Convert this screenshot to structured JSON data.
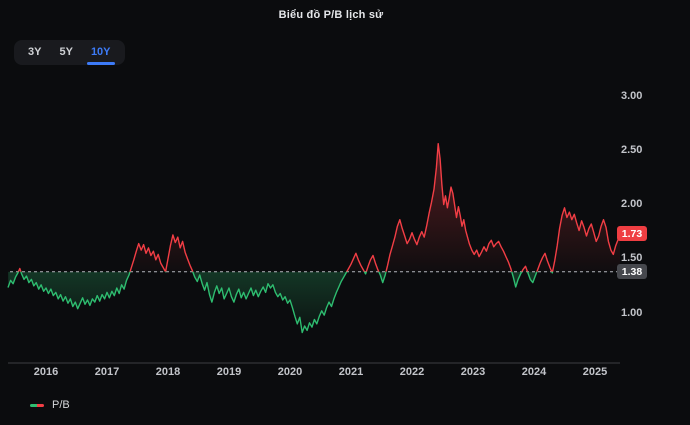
{
  "header": {
    "title": "Biểu đồ P/B lịch sử"
  },
  "range_switcher": {
    "options": [
      {
        "label": "3Y",
        "active": false
      },
      {
        "label": "5Y",
        "active": false
      },
      {
        "label": "10Y",
        "active": true
      }
    ],
    "active_color": "#3d7bf7"
  },
  "legend": {
    "label": "P/B"
  },
  "chart_data": {
    "type": "line",
    "subtype": "baseline",
    "title": "Biểu đồ P/B lịch sử",
    "series_name": "P/B",
    "xlabel": "",
    "ylabel": "",
    "legend_position": "bottom-left",
    "grid": false,
    "baseline_value": 1.38,
    "baseline_label": "1.38",
    "current_value": 1.73,
    "current_value_label": "1.73",
    "y_ticks": [
      "3.00",
      "2.50",
      "2.00",
      "1.50",
      "1.00"
    ],
    "x_ticks": [
      "2016",
      "2017",
      "2018",
      "2019",
      "2020",
      "2021",
      "2022",
      "2023",
      "2024",
      "2025"
    ],
    "x_range": [
      2015.38,
      2025.41
    ],
    "y_range": [
      0.55,
      3.05
    ],
    "colors": {
      "up": "#f23e45",
      "down": "#2ebd70",
      "baseline": "#b3b6bc",
      "axis": "#3c3e43",
      "current_badge_bg": "#ef3e42",
      "baseline_badge_bg": "#46484d"
    },
    "points": [
      [
        2015.38,
        1.24
      ],
      [
        2015.42,
        1.3
      ],
      [
        2015.46,
        1.27
      ],
      [
        2015.5,
        1.33
      ],
      [
        2015.54,
        1.37
      ],
      [
        2015.57,
        1.41
      ],
      [
        2015.6,
        1.36
      ],
      [
        2015.64,
        1.31
      ],
      [
        2015.68,
        1.34
      ],
      [
        2015.72,
        1.28
      ],
      [
        2015.76,
        1.31
      ],
      [
        2015.8,
        1.25
      ],
      [
        2015.84,
        1.28
      ],
      [
        2015.88,
        1.22
      ],
      [
        2015.92,
        1.26
      ],
      [
        2015.96,
        1.2
      ],
      [
        2016.0,
        1.23
      ],
      [
        2016.04,
        1.18
      ],
      [
        2016.08,
        1.22
      ],
      [
        2016.12,
        1.16
      ],
      [
        2016.16,
        1.19
      ],
      [
        2016.2,
        1.13
      ],
      [
        2016.24,
        1.17
      ],
      [
        2016.28,
        1.11
      ],
      [
        2016.32,
        1.15
      ],
      [
        2016.36,
        1.09
      ],
      [
        2016.4,
        1.13
      ],
      [
        2016.44,
        1.06
      ],
      [
        2016.48,
        1.1
      ],
      [
        2016.52,
        1.04
      ],
      [
        2016.56,
        1.09
      ],
      [
        2016.6,
        1.14
      ],
      [
        2016.64,
        1.08
      ],
      [
        2016.68,
        1.12
      ],
      [
        2016.72,
        1.07
      ],
      [
        2016.76,
        1.13
      ],
      [
        2016.8,
        1.1
      ],
      [
        2016.84,
        1.16
      ],
      [
        2016.88,
        1.11
      ],
      [
        2016.92,
        1.17
      ],
      [
        2016.96,
        1.13
      ],
      [
        2017.0,
        1.19
      ],
      [
        2017.04,
        1.14
      ],
      [
        2017.08,
        1.2
      ],
      [
        2017.12,
        1.16
      ],
      [
        2017.16,
        1.23
      ],
      [
        2017.2,
        1.18
      ],
      [
        2017.24,
        1.26
      ],
      [
        2017.28,
        1.22
      ],
      [
        2017.32,
        1.3
      ],
      [
        2017.36,
        1.35
      ],
      [
        2017.4,
        1.42
      ],
      [
        2017.44,
        1.49
      ],
      [
        2017.48,
        1.57
      ],
      [
        2017.52,
        1.64
      ],
      [
        2017.56,
        1.58
      ],
      [
        2017.6,
        1.63
      ],
      [
        2017.64,
        1.55
      ],
      [
        2017.68,
        1.6
      ],
      [
        2017.72,
        1.53
      ],
      [
        2017.76,
        1.57
      ],
      [
        2017.8,
        1.49
      ],
      [
        2017.84,
        1.54
      ],
      [
        2017.88,
        1.46
      ],
      [
        2017.92,
        1.42
      ],
      [
        2017.96,
        1.38
      ],
      [
        2018.0,
        1.5
      ],
      [
        2018.04,
        1.62
      ],
      [
        2018.08,
        1.72
      ],
      [
        2018.12,
        1.65
      ],
      [
        2018.16,
        1.7
      ],
      [
        2018.2,
        1.6
      ],
      [
        2018.24,
        1.66
      ],
      [
        2018.28,
        1.56
      ],
      [
        2018.32,
        1.5
      ],
      [
        2018.36,
        1.44
      ],
      [
        2018.4,
        1.39
      ],
      [
        2018.44,
        1.33
      ],
      [
        2018.48,
        1.29
      ],
      [
        2018.52,
        1.35
      ],
      [
        2018.56,
        1.27
      ],
      [
        2018.6,
        1.21
      ],
      [
        2018.64,
        1.28
      ],
      [
        2018.68,
        1.17
      ],
      [
        2018.72,
        1.1
      ],
      [
        2018.76,
        1.19
      ],
      [
        2018.8,
        1.25
      ],
      [
        2018.84,
        1.18
      ],
      [
        2018.88,
        1.23
      ],
      [
        2018.92,
        1.13
      ],
      [
        2018.96,
        1.18
      ],
      [
        2019.0,
        1.23
      ],
      [
        2019.04,
        1.15
      ],
      [
        2019.08,
        1.1
      ],
      [
        2019.12,
        1.17
      ],
      [
        2019.16,
        1.22
      ],
      [
        2019.2,
        1.14
      ],
      [
        2019.24,
        1.19
      ],
      [
        2019.28,
        1.13
      ],
      [
        2019.32,
        1.18
      ],
      [
        2019.36,
        1.23
      ],
      [
        2019.4,
        1.16
      ],
      [
        2019.44,
        1.21
      ],
      [
        2019.48,
        1.15
      ],
      [
        2019.52,
        1.2
      ],
      [
        2019.56,
        1.24
      ],
      [
        2019.6,
        1.19
      ],
      [
        2019.64,
        1.27
      ],
      [
        2019.68,
        1.23
      ],
      [
        2019.72,
        1.26
      ],
      [
        2019.76,
        1.19
      ],
      [
        2019.8,
        1.15
      ],
      [
        2019.84,
        1.18
      ],
      [
        2019.88,
        1.12
      ],
      [
        2019.92,
        1.15
      ],
      [
        2019.96,
        1.09
      ],
      [
        2020.0,
        1.12
      ],
      [
        2020.04,
        1.05
      ],
      [
        2020.08,
        0.97
      ],
      [
        2020.12,
        0.9
      ],
      [
        2020.16,
        0.96
      ],
      [
        2020.2,
        0.82
      ],
      [
        2020.24,
        0.88
      ],
      [
        2020.28,
        0.84
      ],
      [
        2020.32,
        0.91
      ],
      [
        2020.36,
        0.87
      ],
      [
        2020.4,
        0.94
      ],
      [
        2020.44,
        0.9
      ],
      [
        2020.48,
        0.97
      ],
      [
        2020.52,
        1.02
      ],
      [
        2020.56,
        0.98
      ],
      [
        2020.6,
        1.05
      ],
      [
        2020.64,
        1.1
      ],
      [
        2020.68,
        1.06
      ],
      [
        2020.72,
        1.13
      ],
      [
        2020.76,
        1.19
      ],
      [
        2020.8,
        1.24
      ],
      [
        2020.84,
        1.29
      ],
      [
        2020.88,
        1.33
      ],
      [
        2020.92,
        1.37
      ],
      [
        2020.96,
        1.41
      ],
      [
        2021.0,
        1.45
      ],
      [
        2021.04,
        1.5
      ],
      [
        2021.08,
        1.55
      ],
      [
        2021.12,
        1.49
      ],
      [
        2021.16,
        1.44
      ],
      [
        2021.2,
        1.4
      ],
      [
        2021.24,
        1.36
      ],
      [
        2021.28,
        1.43
      ],
      [
        2021.32,
        1.49
      ],
      [
        2021.36,
        1.53
      ],
      [
        2021.4,
        1.46
      ],
      [
        2021.44,
        1.4
      ],
      [
        2021.48,
        1.35
      ],
      [
        2021.52,
        1.28
      ],
      [
        2021.56,
        1.35
      ],
      [
        2021.6,
        1.44
      ],
      [
        2021.64,
        1.54
      ],
      [
        2021.68,
        1.62
      ],
      [
        2021.72,
        1.7
      ],
      [
        2021.76,
        1.8
      ],
      [
        2021.8,
        1.86
      ],
      [
        2021.84,
        1.78
      ],
      [
        2021.88,
        1.71
      ],
      [
        2021.92,
        1.64
      ],
      [
        2021.96,
        1.68
      ],
      [
        2022.0,
        1.74
      ],
      [
        2022.04,
        1.68
      ],
      [
        2022.08,
        1.63
      ],
      [
        2022.12,
        1.7
      ],
      [
        2022.16,
        1.75
      ],
      [
        2022.2,
        1.7
      ],
      [
        2022.24,
        1.8
      ],
      [
        2022.28,
        1.92
      ],
      [
        2022.32,
        2.02
      ],
      [
        2022.36,
        2.14
      ],
      [
        2022.4,
        2.34
      ],
      [
        2022.43,
        2.56
      ],
      [
        2022.46,
        2.42
      ],
      [
        2022.49,
        2.18
      ],
      [
        2022.52,
        2.0
      ],
      [
        2022.55,
        2.08
      ],
      [
        2022.58,
        1.97
      ],
      [
        2022.61,
        2.06
      ],
      [
        2022.64,
        2.16
      ],
      [
        2022.67,
        2.1
      ],
      [
        2022.7,
        1.99
      ],
      [
        2022.73,
        1.88
      ],
      [
        2022.76,
        1.98
      ],
      [
        2022.79,
        1.9
      ],
      [
        2022.82,
        1.8
      ],
      [
        2022.85,
        1.86
      ],
      [
        2022.88,
        1.76
      ],
      [
        2022.91,
        1.7
      ],
      [
        2022.94,
        1.64
      ],
      [
        2022.98,
        1.58
      ],
      [
        2023.02,
        1.54
      ],
      [
        2023.06,
        1.58
      ],
      [
        2023.1,
        1.52
      ],
      [
        2023.14,
        1.56
      ],
      [
        2023.18,
        1.61
      ],
      [
        2023.22,
        1.57
      ],
      [
        2023.26,
        1.64
      ],
      [
        2023.3,
        1.67
      ],
      [
        2023.34,
        1.61
      ],
      [
        2023.38,
        1.64
      ],
      [
        2023.42,
        1.66
      ],
      [
        2023.46,
        1.61
      ],
      [
        2023.5,
        1.57
      ],
      [
        2023.54,
        1.52
      ],
      [
        2023.58,
        1.47
      ],
      [
        2023.62,
        1.41
      ],
      [
        2023.66,
        1.33
      ],
      [
        2023.7,
        1.24
      ],
      [
        2023.74,
        1.31
      ],
      [
        2023.78,
        1.36
      ],
      [
        2023.82,
        1.4
      ],
      [
        2023.86,
        1.43
      ],
      [
        2023.9,
        1.37
      ],
      [
        2023.94,
        1.31
      ],
      [
        2023.98,
        1.28
      ],
      [
        2024.02,
        1.34
      ],
      [
        2024.06,
        1.4
      ],
      [
        2024.1,
        1.46
      ],
      [
        2024.14,
        1.51
      ],
      [
        2024.18,
        1.55
      ],
      [
        2024.22,
        1.48
      ],
      [
        2024.26,
        1.42
      ],
      [
        2024.3,
        1.37
      ],
      [
        2024.34,
        1.48
      ],
      [
        2024.38,
        1.62
      ],
      [
        2024.42,
        1.78
      ],
      [
        2024.46,
        1.9
      ],
      [
        2024.5,
        1.97
      ],
      [
        2024.54,
        1.88
      ],
      [
        2024.58,
        1.93
      ],
      [
        2024.62,
        1.86
      ],
      [
        2024.66,
        1.91
      ],
      [
        2024.7,
        1.83
      ],
      [
        2024.74,
        1.76
      ],
      [
        2024.78,
        1.85
      ],
      [
        2024.82,
        1.79
      ],
      [
        2024.86,
        1.71
      ],
      [
        2024.9,
        1.78
      ],
      [
        2024.94,
        1.82
      ],
      [
        2024.98,
        1.74
      ],
      [
        2025.02,
        1.66
      ],
      [
        2025.06,
        1.71
      ],
      [
        2025.1,
        1.8
      ],
      [
        2025.14,
        1.86
      ],
      [
        2025.18,
        1.79
      ],
      [
        2025.22,
        1.66
      ],
      [
        2025.26,
        1.58
      ],
      [
        2025.3,
        1.54
      ],
      [
        2025.34,
        1.62
      ],
      [
        2025.38,
        1.68
      ],
      [
        2025.41,
        1.73
      ]
    ]
  }
}
